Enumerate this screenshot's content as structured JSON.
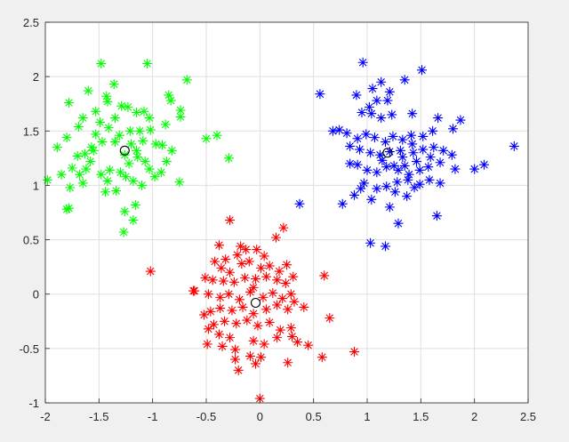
{
  "chart_data": {
    "type": "scatter",
    "title": "",
    "xlabel": "",
    "ylabel": "",
    "xlim": [
      -2,
      2.5
    ],
    "ylim": [
      -1,
      2.5
    ],
    "x_ticks": [
      "-2",
      "-1.5",
      "-1",
      "-0.5",
      "0",
      "0.5",
      "1",
      "1.5",
      "2",
      "2.5"
    ],
    "y_ticks": [
      "-1",
      "-0.5",
      "0",
      "0.5",
      "1",
      "1.5",
      "2",
      "2.5"
    ],
    "grid": true,
    "legend": "none",
    "series": [
      {
        "color": "#00ff00",
        "marker": "asterisk",
        "points": [
          [
            -1.48,
            2.12
          ],
          [
            -1.05,
            2.12
          ],
          [
            -0.68,
            1.97
          ],
          [
            -1.6,
            1.87
          ],
          [
            -1.78,
            1.76
          ],
          [
            -1.36,
            1.93
          ],
          [
            -1.43,
            1.82
          ],
          [
            -1.42,
            1.77
          ],
          [
            -1.53,
            1.68
          ],
          [
            -1.65,
            1.62
          ],
          [
            -1.69,
            1.54
          ],
          [
            -1.41,
            1.53
          ],
          [
            -1.29,
            1.73
          ],
          [
            -1.23,
            1.72
          ],
          [
            -1.15,
            1.67
          ],
          [
            -1.08,
            1.68
          ],
          [
            -1.03,
            1.62
          ],
          [
            -0.85,
            1.83
          ],
          [
            -0.83,
            1.78
          ],
          [
            -0.74,
            1.69
          ],
          [
            -0.74,
            1.63
          ],
          [
            -0.88,
            1.56
          ],
          [
            -1.02,
            1.51
          ],
          [
            -1.12,
            1.5
          ],
          [
            -1.21,
            1.5
          ],
          [
            -1.31,
            1.46
          ],
          [
            -1.35,
            1.4
          ],
          [
            -1.47,
            1.4
          ],
          [
            -1.57,
            1.35
          ],
          [
            -1.63,
            1.29
          ],
          [
            -1.55,
            1.32
          ],
          [
            -1.7,
            1.27
          ],
          [
            -1.8,
            1.44
          ],
          [
            -1.89,
            1.35
          ],
          [
            -1.75,
            1.16
          ],
          [
            -1.62,
            1.15
          ],
          [
            -1.58,
            1.22
          ],
          [
            -1.68,
            1.1
          ],
          [
            -1.85,
            1.1
          ],
          [
            -1.98,
            1.05
          ],
          [
            -1.77,
            0.98
          ],
          [
            -1.65,
            1.02
          ],
          [
            -1.48,
            1.1
          ],
          [
            -1.4,
            1.14
          ],
          [
            -1.42,
            1.04
          ],
          [
            -1.3,
            1.12
          ],
          [
            -1.22,
            1.2
          ],
          [
            -1.14,
            1.26
          ],
          [
            -1.15,
            1.32
          ],
          [
            -1.07,
            1.22
          ],
          [
            -1.03,
            1.15
          ],
          [
            -0.98,
            1.08
          ],
          [
            -0.92,
            1.12
          ],
          [
            -0.87,
            1.22
          ],
          [
            -0.82,
            1.32
          ],
          [
            -0.91,
            1.37
          ],
          [
            -1.2,
            1.38
          ],
          [
            -1.25,
            1.08
          ],
          [
            -1.18,
            1.04
          ],
          [
            -1.1,
            1.0
          ],
          [
            -1.34,
            0.95
          ],
          [
            -1.44,
            0.94
          ],
          [
            -1.16,
            0.82
          ],
          [
            -1.26,
            0.76
          ],
          [
            -1.18,
            0.68
          ],
          [
            -1.27,
            0.57
          ],
          [
            -1.78,
            0.79
          ],
          [
            -1.8,
            0.78
          ],
          [
            -0.75,
            1.03
          ],
          [
            -0.5,
            1.43
          ],
          [
            -0.4,
            1.46
          ],
          [
            -0.29,
            1.25
          ],
          [
            -0.97,
            1.38
          ],
          [
            -1.09,
            1.41
          ],
          [
            -1.53,
            1.47
          ],
          [
            -1.49,
            1.58
          ],
          [
            -1.35,
            1.62
          ],
          [
            -1.26,
            1.28
          ]
        ]
      },
      {
        "color": "#0000ff",
        "marker": "asterisk",
        "points": [
          [
            0.96,
            2.13
          ],
          [
            1.51,
            2.06
          ],
          [
            1.35,
            1.97
          ],
          [
            0.56,
            1.84
          ],
          [
            0.9,
            1.83
          ],
          [
            1.05,
            1.89
          ],
          [
            1.13,
            1.95
          ],
          [
            1.21,
            1.86
          ],
          [
            1.19,
            1.78
          ],
          [
            1.09,
            1.78
          ],
          [
            1.02,
            1.72
          ],
          [
            0.95,
            1.67
          ],
          [
            1.04,
            1.66
          ],
          [
            1.13,
            1.62
          ],
          [
            1.23,
            1.65
          ],
          [
            1.42,
            1.66
          ],
          [
            1.66,
            1.62
          ],
          [
            1.87,
            1.6
          ],
          [
            1.8,
            1.52
          ],
          [
            1.61,
            1.5
          ],
          [
            1.52,
            1.45
          ],
          [
            1.42,
            1.38
          ],
          [
            1.33,
            1.42
          ],
          [
            1.24,
            1.45
          ],
          [
            1.17,
            1.4
          ],
          [
            1.07,
            1.44
          ],
          [
            0.99,
            1.47
          ],
          [
            0.91,
            1.43
          ],
          [
            0.81,
            1.48
          ],
          [
            0.74,
            1.51
          ],
          [
            0.68,
            1.5
          ],
          [
            0.84,
            1.36
          ],
          [
            0.93,
            1.33
          ],
          [
            1.03,
            1.3
          ],
          [
            1.12,
            1.28
          ],
          [
            1.21,
            1.31
          ],
          [
            1.33,
            1.26
          ],
          [
            1.43,
            1.3
          ],
          [
            1.52,
            1.33
          ],
          [
            1.62,
            1.35
          ],
          [
            1.71,
            1.32
          ],
          [
            1.79,
            1.28
          ],
          [
            1.68,
            1.21
          ],
          [
            1.57,
            1.17
          ],
          [
            1.49,
            1.14
          ],
          [
            1.39,
            1.1
          ],
          [
            1.29,
            1.14
          ],
          [
            1.18,
            1.17
          ],
          [
            1.09,
            1.12
          ],
          [
            1.0,
            1.14
          ],
          [
            0.91,
            1.19
          ],
          [
            0.84,
            1.2
          ],
          [
            0.97,
            1.02
          ],
          [
            1.09,
            0.97
          ],
          [
            1.18,
            0.99
          ],
          [
            1.28,
            1.03
          ],
          [
            1.38,
            1.05
          ],
          [
            1.49,
            1.01
          ],
          [
            1.58,
            1.05
          ],
          [
            1.68,
            1.02
          ],
          [
            1.82,
            1.15
          ],
          [
            2.0,
            1.15
          ],
          [
            2.09,
            1.19
          ],
          [
            2.37,
            1.36
          ],
          [
            0.37,
            0.83
          ],
          [
            0.77,
            0.83
          ],
          [
            0.88,
            0.91
          ],
          [
            0.94,
            0.97
          ],
          [
            1.04,
            0.87
          ],
          [
            1.21,
            0.8
          ],
          [
            1.26,
            0.94
          ],
          [
            1.37,
            0.9
          ],
          [
            1.44,
            0.98
          ],
          [
            1.65,
            0.72
          ],
          [
            1.29,
            0.65
          ],
          [
            1.03,
            0.47
          ],
          [
            1.17,
            0.44
          ],
          [
            1.46,
            1.22
          ],
          [
            1.31,
            1.32
          ],
          [
            1.25,
            1.18
          ],
          [
            1.14,
            1.23
          ],
          [
            1.35,
            1.18
          ],
          [
            1.41,
            1.46
          ],
          [
            1.59,
            1.26
          ]
        ]
      },
      {
        "color": "#ff0000",
        "marker": "asterisk",
        "points": [
          [
            -0.28,
            0.68
          ],
          [
            0.22,
            0.61
          ],
          [
            -0.38,
            0.45
          ],
          [
            0.15,
            0.52
          ],
          [
            -0.18,
            0.44
          ],
          [
            -0.13,
            0.41
          ],
          [
            -0.03,
            0.41
          ],
          [
            0.04,
            0.35
          ],
          [
            -0.21,
            0.36
          ],
          [
            -0.32,
            0.32
          ],
          [
            -0.42,
            0.3
          ],
          [
            -0.36,
            0.24
          ],
          [
            -0.28,
            0.2
          ],
          [
            -0.17,
            0.28
          ],
          [
            -0.1,
            0.3
          ],
          [
            0.01,
            0.24
          ],
          [
            0.09,
            0.26
          ],
          [
            0.18,
            0.21
          ],
          [
            0.25,
            0.27
          ],
          [
            0.31,
            0.16
          ],
          [
            0.24,
            0.1
          ],
          [
            0.16,
            0.13
          ],
          [
            0.06,
            0.16
          ],
          [
            -0.04,
            0.14
          ],
          [
            -0.14,
            0.15
          ],
          [
            -0.24,
            0.11
          ],
          [
            -0.34,
            0.12
          ],
          [
            -0.44,
            0.13
          ],
          [
            -0.51,
            0.15
          ],
          [
            -0.61,
            0.03
          ],
          [
            -0.48,
            0.0
          ],
          [
            -0.37,
            -0.03
          ],
          [
            -0.29,
            0.0
          ],
          [
            -0.19,
            -0.05
          ],
          [
            -0.09,
            0.02
          ],
          [
            0.03,
            -0.03
          ],
          [
            0.12,
            0.01
          ],
          [
            0.21,
            -0.04
          ],
          [
            0.32,
            -0.07
          ],
          [
            0.41,
            -0.12
          ],
          [
            0.26,
            -0.14
          ],
          [
            0.16,
            -0.1
          ],
          [
            0.06,
            -0.14
          ],
          [
            -0.06,
            -0.18
          ],
          [
            -0.16,
            -0.12
          ],
          [
            -0.26,
            -0.15
          ],
          [
            -0.37,
            -0.13
          ],
          [
            -0.46,
            -0.16
          ],
          [
            -0.52,
            -0.19
          ],
          [
            -0.43,
            -0.28
          ],
          [
            -0.33,
            -0.25
          ],
          [
            -0.22,
            -0.27
          ],
          [
            -0.12,
            -0.24
          ],
          [
            -0.02,
            -0.29
          ],
          [
            0.09,
            -0.26
          ],
          [
            0.19,
            -0.33
          ],
          [
            0.29,
            -0.31
          ],
          [
            -0.38,
            -0.37
          ],
          [
            -0.28,
            -0.4
          ],
          [
            -0.48,
            -0.32
          ],
          [
            -0.49,
            -0.46
          ],
          [
            -0.35,
            -0.48
          ],
          [
            -0.23,
            -0.51
          ],
          [
            -0.06,
            -0.43
          ],
          [
            0.04,
            -0.46
          ],
          [
            0.16,
            -0.4
          ],
          [
            0.3,
            -0.39
          ],
          [
            0.35,
            -0.44
          ],
          [
            0.45,
            -0.47
          ],
          [
            -0.23,
            -0.6
          ],
          [
            -0.09,
            -0.57
          ],
          [
            -0.04,
            -0.64
          ],
          [
            -0.2,
            -0.7
          ],
          [
            0.01,
            -0.58
          ],
          [
            0.26,
            -0.63
          ],
          [
            -1.02,
            0.21
          ],
          [
            -0.62,
            0.03
          ],
          [
            0.6,
            0.17
          ],
          [
            0.58,
            -0.58
          ],
          [
            0.65,
            -0.22
          ],
          [
            0.88,
            -0.53
          ],
          [
            0.29,
            0.0
          ],
          [
            0.0,
            -0.96
          ],
          [
            -0.06,
            0.06
          ]
        ]
      }
    ],
    "centroids": {
      "color": "#000000",
      "marker": "circle",
      "points": [
        [
          -1.26,
          1.32
        ],
        [
          1.19,
          1.3
        ],
        [
          -0.04,
          -0.08
        ]
      ]
    }
  }
}
